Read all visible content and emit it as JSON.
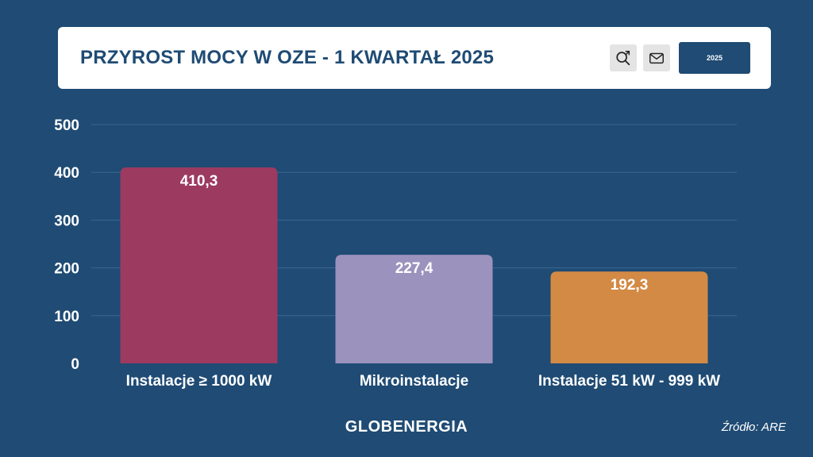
{
  "header": {
    "title": "PRZYROST MOCY W OZE - 1 KWARTAŁ 2025",
    "search_icon": "zoom-search-icon",
    "mail_icon": "mail-icon",
    "year_button_label": "2025"
  },
  "colors": {
    "background": "#1f4b74",
    "card": "#ffffff",
    "bar_1": "#9d3a60",
    "bar_2": "#9b92bd",
    "bar_3": "#d38a45"
  },
  "chart_data": {
    "type": "bar",
    "categories": [
      "Instalacje ≥ 1000 kW",
      "Mikroinstalacje",
      "Instalacje 51 kW - 999 kW"
    ],
    "values": [
      410.3,
      227.4,
      192.3
    ],
    "value_labels": [
      "410,3",
      "227,4",
      "192,3"
    ],
    "bar_colors": [
      "#9d3a60",
      "#9b92bd",
      "#d38a45"
    ],
    "ylim": [
      0,
      500
    ],
    "yticks": [
      0,
      100,
      200,
      300,
      400,
      500
    ],
    "grid": true,
    "legend": "none"
  },
  "footer": {
    "logo": "GLOBENERGIA",
    "source": "Źródło: ARE"
  }
}
